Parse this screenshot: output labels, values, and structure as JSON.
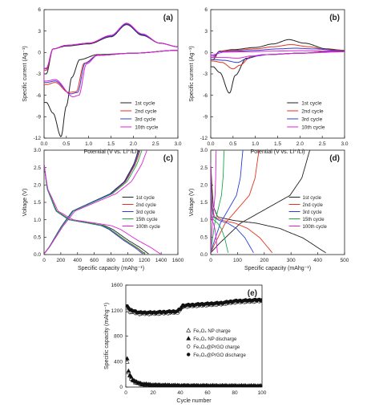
{
  "chart_data": [
    {
      "panel": "(a)",
      "type": "line",
      "xlabel": "Potential (V vs. Li⁺/Li)",
      "ylabel": "Specific current (Ag⁻¹)",
      "xlim": [
        0,
        3.0
      ],
      "ylim": [
        -12,
        6
      ],
      "xticks": [
        "0.0",
        "0.5",
        "1.0",
        "1.5",
        "2.0",
        "2.5",
        "3.0"
      ],
      "yticks": [
        "-12",
        "-9",
        "-6",
        "-3",
        "0",
        "3",
        "6"
      ],
      "legend_position": "bottom-right",
      "series": [
        {
          "name": "1st cycle",
          "color": "#222222",
          "cathodic": [
            [
              0.05,
              -7.0
            ],
            [
              0.2,
              -8.5
            ],
            [
              0.38,
              -11.8
            ],
            [
              0.5,
              -7.5
            ],
            [
              0.62,
              -3.5
            ],
            [
              0.8,
              -1.0
            ],
            [
              1.2,
              -0.3
            ],
            [
              2.0,
              -0.1
            ],
            [
              3.0,
              0.3
            ]
          ],
          "anodic": [
            [
              0.05,
              -3.0
            ],
            [
              0.2,
              0.5
            ],
            [
              0.5,
              0.9
            ],
            [
              1.0,
              1.2
            ],
            [
              1.5,
              2.2
            ],
            [
              1.85,
              3.9
            ],
            [
              2.2,
              2.4
            ],
            [
              2.6,
              1.3
            ],
            [
              3.0,
              0.8
            ]
          ]
        },
        {
          "name": "2nd cycle",
          "color": "#e8321e",
          "cathodic": [
            [
              0.05,
              -4.5
            ],
            [
              0.25,
              -4.2
            ],
            [
              0.55,
              -5.6
            ],
            [
              0.72,
              -5.5
            ],
            [
              0.9,
              -1.5
            ],
            [
              1.2,
              -0.4
            ],
            [
              2.0,
              -0.1
            ],
            [
              3.0,
              0.3
            ]
          ],
          "anodic": [
            [
              0.05,
              -2.5
            ],
            [
              0.2,
              0.5
            ],
            [
              0.5,
              1.0
            ],
            [
              1.0,
              1.3
            ],
            [
              1.5,
              2.3
            ],
            [
              1.85,
              4.0
            ],
            [
              2.2,
              2.5
            ],
            [
              2.6,
              1.3
            ],
            [
              3.0,
              0.8
            ]
          ]
        },
        {
          "name": "3rd cycle",
          "color": "#2b3fd6",
          "cathodic": [
            [
              0.05,
              -4.2
            ],
            [
              0.25,
              -4.0
            ],
            [
              0.6,
              -5.8
            ],
            [
              0.75,
              -5.6
            ],
            [
              0.92,
              -1.5
            ],
            [
              1.2,
              -0.4
            ],
            [
              2.0,
              -0.1
            ],
            [
              3.0,
              0.3
            ]
          ],
          "anodic": [
            [
              0.05,
              -2.3
            ],
            [
              0.2,
              0.5
            ],
            [
              0.5,
              1.0
            ],
            [
              1.0,
              1.3
            ],
            [
              1.5,
              2.3
            ],
            [
              1.85,
              4.0
            ],
            [
              2.2,
              2.5
            ],
            [
              2.6,
              1.3
            ],
            [
              3.0,
              0.8
            ]
          ]
        },
        {
          "name": "10th cycle",
          "color": "#e020d6",
          "cathodic": [
            [
              0.05,
              -4.0
            ],
            [
              0.25,
              -3.8
            ],
            [
              0.65,
              -6.2
            ],
            [
              0.78,
              -6.0
            ],
            [
              0.95,
              -1.6
            ],
            [
              1.2,
              -0.4
            ],
            [
              2.0,
              -0.1
            ],
            [
              3.0,
              0.3
            ]
          ],
          "anodic": [
            [
              0.05,
              -2.2
            ],
            [
              0.2,
              0.5
            ],
            [
              0.5,
              1.0
            ],
            [
              1.0,
              1.3
            ],
            [
              1.5,
              2.4
            ],
            [
              1.85,
              4.1
            ],
            [
              2.2,
              2.6
            ],
            [
              2.6,
              1.3
            ],
            [
              3.0,
              0.8
            ]
          ]
        }
      ]
    },
    {
      "panel": "(b)",
      "type": "line",
      "xlabel": "Potential (V vs. Li⁺/Li)",
      "ylabel": "Specific current (Ag⁻¹)",
      "xlim": [
        0,
        3.0
      ],
      "ylim": [
        -12,
        6
      ],
      "xticks": [
        "0.0",
        "0.5",
        "1.0",
        "1.5",
        "2.0",
        "2.5",
        "3.0"
      ],
      "yticks": [
        "-12",
        "-9",
        "-6",
        "-3",
        "0",
        "3",
        "6"
      ],
      "legend_position": "bottom-right",
      "series": [
        {
          "name": "1st cycle",
          "color": "#222222",
          "cathodic": [
            [
              0.05,
              -2.0
            ],
            [
              0.2,
              -2.8
            ],
            [
              0.42,
              -5.7
            ],
            [
              0.55,
              -3.2
            ],
            [
              0.8,
              -0.8
            ],
            [
              1.2,
              -0.3
            ],
            [
              2.0,
              -0.1
            ],
            [
              3.0,
              0.3
            ]
          ],
          "anodic": [
            [
              0.05,
              -1.0
            ],
            [
              0.2,
              0.2
            ],
            [
              0.5,
              0.4
            ],
            [
              1.0,
              0.7
            ],
            [
              1.4,
              1.2
            ],
            [
              1.75,
              1.8
            ],
            [
              2.1,
              1.3
            ],
            [
              2.6,
              0.5
            ],
            [
              3.0,
              0.3
            ]
          ]
        },
        {
          "name": "2nd cycle",
          "color": "#e8321e",
          "cathodic": [
            [
              0.05,
              -1.2
            ],
            [
              0.25,
              -1.4
            ],
            [
              0.5,
              -2.3
            ],
            [
              0.65,
              -1.8
            ],
            [
              0.9,
              -0.6
            ],
            [
              1.2,
              -0.3
            ],
            [
              2.0,
              -0.1
            ],
            [
              3.0,
              0.3
            ]
          ],
          "anodic": [
            [
              0.05,
              -0.7
            ],
            [
              0.2,
              0.2
            ],
            [
              0.5,
              0.3
            ],
            [
              1.0,
              0.5
            ],
            [
              1.4,
              0.8
            ],
            [
              1.8,
              1.1
            ],
            [
              2.2,
              0.8
            ],
            [
              2.6,
              0.4
            ],
            [
              3.0,
              0.3
            ]
          ]
        },
        {
          "name": "3rd cycle",
          "color": "#2b3fd6",
          "cathodic": [
            [
              0.05,
              -1.0
            ],
            [
              0.3,
              -1.1
            ],
            [
              0.6,
              -1.4
            ],
            [
              0.8,
              -0.9
            ],
            [
              1.0,
              -0.5
            ],
            [
              1.3,
              -0.3
            ],
            [
              2.0,
              -0.1
            ],
            [
              3.0,
              0.2
            ]
          ],
          "anodic": [
            [
              0.05,
              -0.5
            ],
            [
              0.2,
              0.1
            ],
            [
              0.6,
              0.2
            ],
            [
              1.0,
              0.3
            ],
            [
              1.5,
              0.5
            ],
            [
              1.9,
              0.6
            ],
            [
              2.3,
              0.5
            ],
            [
              3.0,
              0.2
            ]
          ]
        },
        {
          "name": "10th cycle",
          "color": "#e020d6",
          "cathodic": [
            [
              0.05,
              -0.7
            ],
            [
              0.3,
              -0.7
            ],
            [
              0.6,
              -0.8
            ],
            [
              0.9,
              -0.5
            ],
            [
              1.2,
              -0.3
            ],
            [
              2.0,
              -0.1
            ],
            [
              3.0,
              0.1
            ]
          ],
          "anodic": [
            [
              0.05,
              -0.3
            ],
            [
              0.3,
              0.05
            ],
            [
              0.8,
              0.1
            ],
            [
              1.5,
              0.2
            ],
            [
              2.0,
              0.25
            ],
            [
              2.5,
              0.2
            ],
            [
              3.0,
              0.1
            ]
          ]
        }
      ]
    },
    {
      "panel": "(c)",
      "type": "line",
      "xlabel": "Specific capacity (mAhg⁻¹)",
      "ylabel": "Voltage (V)",
      "xlim": [
        0,
        1600
      ],
      "ylim": [
        0,
        3.0
      ],
      "xticks": [
        "0",
        "200",
        "400",
        "600",
        "800",
        "1000",
        "1200",
        "1400",
        "1600"
      ],
      "yticks": [
        "0.0",
        "0.5",
        "1.0",
        "1.5",
        "2.0",
        "2.5",
        "3.0"
      ],
      "legend_position": "right",
      "series": [
        {
          "name": "1st cycle",
          "color": "#222222",
          "discharge_capacity": 1250,
          "charge_capacity": 1130
        },
        {
          "name": "2nd cycle",
          "color": "#e8321e",
          "discharge_capacity": 1200,
          "charge_capacity": 1150
        },
        {
          "name": "3rd cycle",
          "color": "#2b3fd6",
          "discharge_capacity": 1180,
          "charge_capacity": 1140
        },
        {
          "name": "15th cycle",
          "color": "#1aa84a",
          "discharge_capacity": 1210,
          "charge_capacity": 1170
        },
        {
          "name": "100th cycle",
          "color": "#e020d6",
          "discharge_capacity": 1390,
          "charge_capacity": 1230
        }
      ]
    },
    {
      "panel": "(d)",
      "type": "line",
      "xlabel": "Specific capacity (mAhg⁻¹)",
      "ylabel": "Voltage (V)",
      "xlim": [
        0,
        500
      ],
      "ylim": [
        0,
        3.0
      ],
      "xticks": [
        "0",
        "100",
        "200",
        "300",
        "400",
        "500"
      ],
      "yticks": [
        "0.0",
        "0.5",
        "1.0",
        "1.5",
        "2.0",
        "2.5",
        "3.0"
      ],
      "legend_position": "right",
      "series": [
        {
          "name": "1st cycle",
          "color": "#222222",
          "discharge_capacity": 430,
          "charge_capacity": 370
        },
        {
          "name": "2nd cycle",
          "color": "#e8321e",
          "discharge_capacity": 230,
          "charge_capacity": 180
        },
        {
          "name": "3rd cycle",
          "color": "#2b3fd6",
          "discharge_capacity": 160,
          "charge_capacity": 120
        },
        {
          "name": "15th cycle",
          "color": "#1aa84a",
          "discharge_capacity": 65,
          "charge_capacity": 50
        },
        {
          "name": "100th cycle",
          "color": "#e020d6",
          "discharge_capacity": 25,
          "charge_capacity": 20
        }
      ]
    },
    {
      "panel": "(e)",
      "type": "scatter",
      "xlabel": "Cycle number",
      "ylabel": "Specific capacity (mAhg⁻¹)",
      "xlim": [
        0,
        100
      ],
      "ylim": [
        0,
        1600
      ],
      "xticks": [
        "0",
        "20",
        "40",
        "60",
        "80",
        "100"
      ],
      "yticks": [
        "0",
        "400",
        "800",
        "1200",
        "1600"
      ],
      "legend_position": "center-right",
      "series": [
        {
          "name": "Fe₃O₄ NP charge",
          "marker": "triangle-open",
          "anchors": [
            [
              1,
              400
            ],
            [
              2,
              230
            ],
            [
              3,
              170
            ],
            [
              5,
              110
            ],
            [
              8,
              70
            ],
            [
              12,
              45
            ],
            [
              20,
              30
            ],
            [
              40,
              20
            ],
            [
              100,
              15
            ]
          ]
        },
        {
          "name": "Fe₃O₄ NP discharge",
          "marker": "triangle-filled",
          "anchors": [
            [
              1,
              440
            ],
            [
              2,
              260
            ],
            [
              3,
              190
            ],
            [
              5,
              120
            ],
            [
              8,
              75
            ],
            [
              12,
              48
            ],
            [
              20,
              32
            ],
            [
              40,
              22
            ],
            [
              100,
              16
            ]
          ]
        },
        {
          "name": "Fe₃O₄@PrGO charge",
          "marker": "circle-open",
          "anchors": [
            [
              1,
              1200
            ],
            [
              3,
              1180
            ],
            [
              10,
              1150
            ],
            [
              20,
              1150
            ],
            [
              38,
              1170
            ],
            [
              40,
              1210
            ],
            [
              42,
              1260
            ],
            [
              55,
              1280
            ],
            [
              70,
              1300
            ],
            [
              80,
              1330
            ],
            [
              100,
              1350
            ]
          ]
        },
        {
          "name": "Fe₃O₄@PrGO discharge",
          "marker": "circle-filled",
          "anchors": [
            [
              1,
              1280
            ],
            [
              3,
              1210
            ],
            [
              10,
              1170
            ],
            [
              20,
              1170
            ],
            [
              38,
              1190
            ],
            [
              40,
              1230
            ],
            [
              42,
              1280
            ],
            [
              55,
              1300
            ],
            [
              70,
              1320
            ],
            [
              80,
              1350
            ],
            [
              100,
              1370
            ]
          ]
        }
      ]
    }
  ]
}
